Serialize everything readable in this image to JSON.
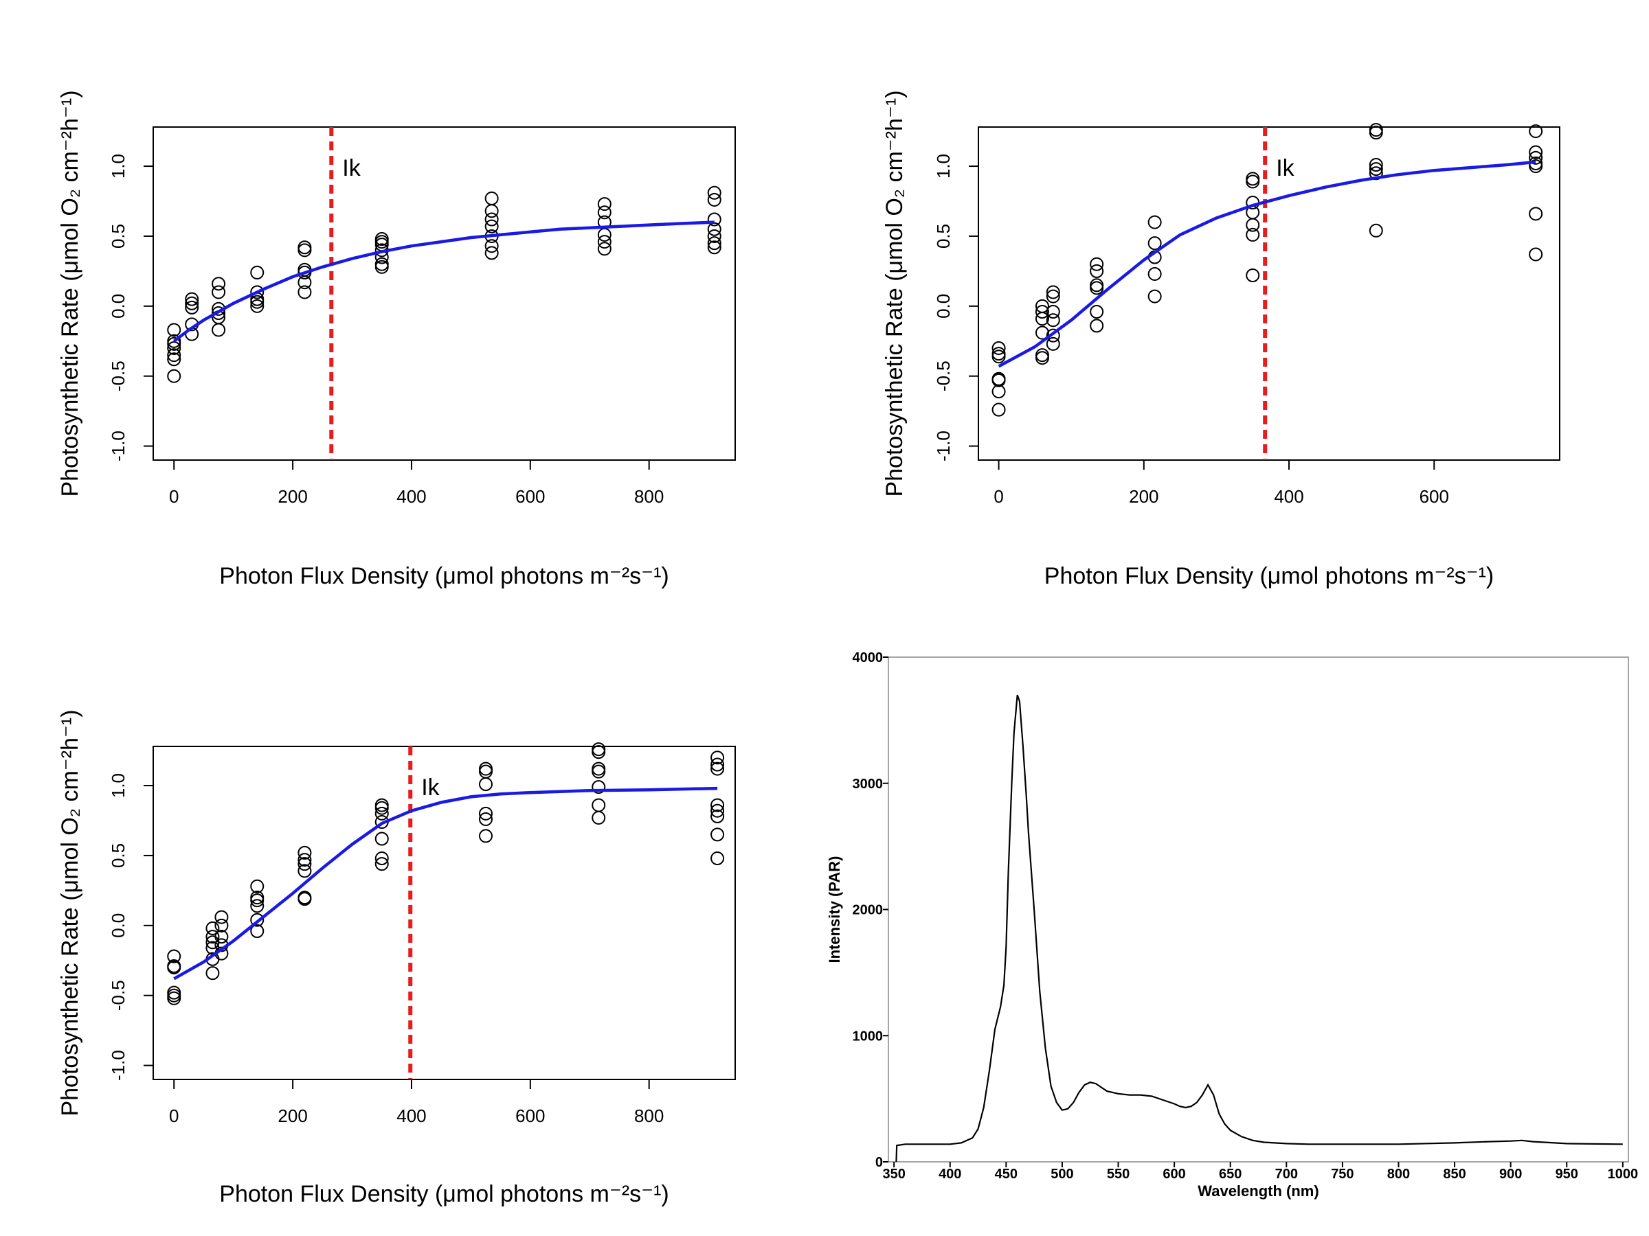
{
  "chart_data": [
    {
      "type": "scatter",
      "title": "",
      "xlabel": "Photon Flux Density (μmol photons m⁻²s⁻¹)",
      "ylabel": "Photosynthetic Rate (μmol O₂ cm⁻²h⁻¹)",
      "xlim": [
        -35,
        945
      ],
      "ylim": [
        -1.1,
        1.28
      ],
      "xticks": [
        "0",
        "200",
        "400",
        "600",
        "800"
      ],
      "xtick_values": [
        0,
        200,
        400,
        600,
        800
      ],
      "yticks": [
        "-1.0",
        "-0.5",
        "0.0",
        "0.5",
        "1.0"
      ],
      "ytick_values": [
        -1.0,
        -0.5,
        0.0,
        0.5,
        1.0
      ],
      "line_color": "#1a1ae6",
      "ik_color": "#e81c1c",
      "ik_label": "Ik",
      "ik_x": 265,
      "points": [
        [
          0,
          -0.5
        ],
        [
          0,
          -0.38
        ],
        [
          0,
          -0.35
        ],
        [
          0,
          -0.3
        ],
        [
          0,
          -0.27
        ],
        [
          0,
          -0.25
        ],
        [
          0,
          -0.17
        ],
        [
          30,
          -0.2
        ],
        [
          30,
          -0.13
        ],
        [
          30,
          -0.01
        ],
        [
          30,
          0.02
        ],
        [
          30,
          0.05
        ],
        [
          75,
          -0.17
        ],
        [
          75,
          -0.08
        ],
        [
          75,
          -0.05
        ],
        [
          75,
          -0.02
        ],
        [
          75,
          0.1
        ],
        [
          75,
          0.16
        ],
        [
          140,
          0.0
        ],
        [
          140,
          0.03
        ],
        [
          140,
          0.05
        ],
        [
          140,
          0.1
        ],
        [
          140,
          0.24
        ],
        [
          220,
          0.1
        ],
        [
          220,
          0.17
        ],
        [
          220,
          0.24
        ],
        [
          220,
          0.26
        ],
        [
          220,
          0.4
        ],
        [
          220,
          0.42
        ],
        [
          350,
          0.28
        ],
        [
          350,
          0.3
        ],
        [
          350,
          0.35
        ],
        [
          350,
          0.4
        ],
        [
          350,
          0.44
        ],
        [
          350,
          0.46
        ],
        [
          350,
          0.48
        ],
        [
          535,
          0.38
        ],
        [
          535,
          0.43
        ],
        [
          535,
          0.5
        ],
        [
          535,
          0.57
        ],
        [
          535,
          0.62
        ],
        [
          535,
          0.68
        ],
        [
          535,
          0.77
        ],
        [
          725,
          0.41
        ],
        [
          725,
          0.46
        ],
        [
          725,
          0.51
        ],
        [
          725,
          0.6
        ],
        [
          725,
          0.67
        ],
        [
          725,
          0.73
        ],
        [
          910,
          0.42
        ],
        [
          910,
          0.45
        ],
        [
          910,
          0.5
        ],
        [
          910,
          0.55
        ],
        [
          910,
          0.62
        ],
        [
          910,
          0.76
        ],
        [
          910,
          0.81
        ]
      ],
      "fit": [
        [
          0,
          -0.25
        ],
        [
          25,
          -0.17
        ],
        [
          50,
          -0.1
        ],
        [
          75,
          -0.04
        ],
        [
          100,
          0.02
        ],
        [
          150,
          0.12
        ],
        [
          200,
          0.21
        ],
        [
          250,
          0.28
        ],
        [
          300,
          0.34
        ],
        [
          350,
          0.39
        ],
        [
          400,
          0.43
        ],
        [
          450,
          0.46
        ],
        [
          500,
          0.49
        ],
        [
          550,
          0.51
        ],
        [
          600,
          0.53
        ],
        [
          650,
          0.55
        ],
        [
          700,
          0.56
        ],
        [
          750,
          0.57
        ],
        [
          800,
          0.58
        ],
        [
          850,
          0.59
        ],
        [
          910,
          0.6
        ]
      ]
    },
    {
      "type": "scatter",
      "title": "",
      "xlabel": "Photon Flux Density (μmol photons m⁻²s⁻¹)",
      "ylabel": "Photosynthetic Rate (μmol O₂ cm⁻²h⁻¹)",
      "xlim": [
        -28,
        773
      ],
      "ylim": [
        -1.1,
        1.28
      ],
      "xticks": [
        "0",
        "200",
        "400",
        "600"
      ],
      "xtick_values": [
        0,
        200,
        400,
        600
      ],
      "yticks": [
        "-1.0",
        "-0.5",
        "0.0",
        "0.5",
        "1.0"
      ],
      "ytick_values": [
        -1.0,
        -0.5,
        0.0,
        0.5,
        1.0
      ],
      "line_color": "#1a1ae6",
      "ik_color": "#e81c1c",
      "ik_label": "Ik",
      "ik_x": 367,
      "points": [
        [
          0,
          -0.74
        ],
        [
          0,
          -0.61
        ],
        [
          0,
          -0.53
        ],
        [
          0,
          -0.52
        ],
        [
          0,
          -0.36
        ],
        [
          0,
          -0.34
        ],
        [
          0,
          -0.3
        ],
        [
          60,
          -0.37
        ],
        [
          60,
          -0.35
        ],
        [
          60,
          -0.19
        ],
        [
          60,
          -0.09
        ],
        [
          60,
          -0.04
        ],
        [
          60,
          0.0
        ],
        [
          75,
          -0.27
        ],
        [
          75,
          -0.21
        ],
        [
          75,
          -0.1
        ],
        [
          75,
          -0.04
        ],
        [
          75,
          0.07
        ],
        [
          75,
          0.1
        ],
        [
          135,
          -0.14
        ],
        [
          135,
          -0.04
        ],
        [
          135,
          0.13
        ],
        [
          135,
          0.15
        ],
        [
          135,
          0.25
        ],
        [
          135,
          0.3
        ],
        [
          215,
          0.07
        ],
        [
          215,
          0.23
        ],
        [
          215,
          0.35
        ],
        [
          215,
          0.45
        ],
        [
          215,
          0.6
        ],
        [
          350,
          0.22
        ],
        [
          350,
          0.51
        ],
        [
          350,
          0.58
        ],
        [
          350,
          0.67
        ],
        [
          350,
          0.74
        ],
        [
          350,
          0.89
        ],
        [
          350,
          0.91
        ],
        [
          520,
          0.54
        ],
        [
          520,
          0.95
        ],
        [
          520,
          0.98
        ],
        [
          520,
          1.01
        ],
        [
          520,
          1.24
        ],
        [
          520,
          1.26
        ],
        [
          740,
          0.37
        ],
        [
          740,
          0.66
        ],
        [
          740,
          1.0
        ],
        [
          740,
          1.02
        ],
        [
          740,
          1.06
        ],
        [
          740,
          1.1
        ],
        [
          740,
          1.25
        ]
      ],
      "fit": [
        [
          0,
          -0.43
        ],
        [
          50,
          -0.29
        ],
        [
          100,
          -0.1
        ],
        [
          150,
          0.12
        ],
        [
          200,
          0.33
        ],
        [
          250,
          0.51
        ],
        [
          300,
          0.63
        ],
        [
          350,
          0.72
        ],
        [
          400,
          0.79
        ],
        [
          450,
          0.85
        ],
        [
          500,
          0.9
        ],
        [
          550,
          0.94
        ],
        [
          600,
          0.97
        ],
        [
          650,
          0.99
        ],
        [
          700,
          1.01
        ],
        [
          740,
          1.03
        ]
      ]
    },
    {
      "type": "scatter",
      "title": "",
      "xlabel": "Photon Flux Density (μmol photons m⁻²s⁻¹)",
      "ylabel": "Photosynthetic Rate (μmol O₂ cm⁻²h⁻¹)",
      "xlim": [
        -35,
        945
      ],
      "ylim": [
        -1.1,
        1.28
      ],
      "xticks": [
        "0",
        "200",
        "400",
        "600",
        "800"
      ],
      "xtick_values": [
        0,
        200,
        400,
        600,
        800
      ],
      "yticks": [
        "-1.0",
        "-0.5",
        "0.0",
        "0.5",
        "1.0"
      ],
      "ytick_values": [
        -1.0,
        -0.5,
        0.0,
        0.5,
        1.0
      ],
      "line_color": "#1a1ae6",
      "ik_color": "#e81c1c",
      "ik_label": "Ik",
      "ik_x": 398,
      "points": [
        [
          0,
          -0.52
        ],
        [
          0,
          -0.5
        ],
        [
          0,
          -0.48
        ],
        [
          0,
          -0.3
        ],
        [
          0,
          -0.29
        ],
        [
          0,
          -0.22
        ],
        [
          65,
          -0.34
        ],
        [
          65,
          -0.24
        ],
        [
          65,
          -0.16
        ],
        [
          65,
          -0.12
        ],
        [
          65,
          -0.08
        ],
        [
          65,
          -0.02
        ],
        [
          80,
          -0.2
        ],
        [
          80,
          -0.14
        ],
        [
          80,
          -0.08
        ],
        [
          80,
          0.0
        ],
        [
          80,
          0.06
        ],
        [
          140,
          -0.04
        ],
        [
          140,
          0.04
        ],
        [
          140,
          0.14
        ],
        [
          140,
          0.18
        ],
        [
          140,
          0.2
        ],
        [
          140,
          0.28
        ],
        [
          220,
          0.19
        ],
        [
          220,
          0.2
        ],
        [
          220,
          0.39
        ],
        [
          220,
          0.44
        ],
        [
          220,
          0.47
        ],
        [
          220,
          0.52
        ],
        [
          350,
          0.44
        ],
        [
          350,
          0.48
        ],
        [
          350,
          0.62
        ],
        [
          350,
          0.74
        ],
        [
          350,
          0.8
        ],
        [
          350,
          0.84
        ],
        [
          350,
          0.86
        ],
        [
          525,
          0.64
        ],
        [
          525,
          0.76
        ],
        [
          525,
          0.8
        ],
        [
          525,
          1.01
        ],
        [
          525,
          1.1
        ],
        [
          525,
          1.12
        ],
        [
          715,
          0.77
        ],
        [
          715,
          0.86
        ],
        [
          715,
          0.99
        ],
        [
          715,
          1.1
        ],
        [
          715,
          1.12
        ],
        [
          715,
          1.24
        ],
        [
          715,
          1.26
        ],
        [
          915,
          0.48
        ],
        [
          915,
          0.65
        ],
        [
          915,
          0.78
        ],
        [
          915,
          0.82
        ],
        [
          915,
          0.86
        ],
        [
          915,
          1.12
        ],
        [
          915,
          1.15
        ],
        [
          915,
          1.2
        ]
      ],
      "fit": [
        [
          0,
          -0.38
        ],
        [
          50,
          -0.26
        ],
        [
          100,
          -0.11
        ],
        [
          150,
          0.06
        ],
        [
          200,
          0.23
        ],
        [
          250,
          0.41
        ],
        [
          300,
          0.58
        ],
        [
          350,
          0.73
        ],
        [
          400,
          0.82
        ],
        [
          450,
          0.88
        ],
        [
          500,
          0.92
        ],
        [
          550,
          0.94
        ],
        [
          600,
          0.95
        ],
        [
          700,
          0.965
        ],
        [
          800,
          0.97
        ],
        [
          915,
          0.98
        ]
      ]
    },
    {
      "type": "line",
      "title": "",
      "xlabel": "Wavelength (nm)",
      "ylabel": "Intensity (PAR)",
      "xlim": [
        345,
        1005
      ],
      "ylim": [
        0,
        4000
      ],
      "xticks": [
        "350",
        "400",
        "450",
        "500",
        "550",
        "600",
        "650",
        "700",
        "750",
        "800",
        "850",
        "900",
        "950",
        "1000"
      ],
      "xtick_values": [
        350,
        400,
        450,
        500,
        550,
        600,
        650,
        700,
        750,
        800,
        850,
        900,
        950,
        1000
      ],
      "yticks": [
        "0",
        "1000",
        "2000",
        "3000",
        "4000"
      ],
      "ytick_values": [
        0,
        1000,
        2000,
        3000,
        4000
      ],
      "line_color": "#000000",
      "x": [
        352,
        352.5,
        360,
        380,
        400,
        410,
        420,
        425,
        430,
        435,
        440,
        445,
        448,
        450,
        452,
        455,
        457,
        460,
        462,
        465,
        468,
        470,
        475,
        480,
        485,
        490,
        495,
        500,
        505,
        510,
        515,
        520,
        525,
        530,
        535,
        540,
        550,
        560,
        570,
        580,
        590,
        600,
        605,
        610,
        615,
        620,
        625,
        630,
        635,
        640,
        645,
        650,
        660,
        670,
        680,
        700,
        720,
        750,
        800,
        850,
        880,
        900,
        910,
        920,
        950,
        1000
      ],
      "y": [
        0,
        130,
        140,
        140,
        140,
        150,
        190,
        260,
        430,
        720,
        1050,
        1230,
        1400,
        1700,
        2300,
        3000,
        3400,
        3700,
        3650,
        3300,
        2900,
        2600,
        2000,
        1350,
        900,
        600,
        470,
        410,
        420,
        470,
        550,
        610,
        630,
        620,
        590,
        560,
        540,
        530,
        530,
        520,
        490,
        460,
        440,
        430,
        440,
        470,
        530,
        610,
        530,
        380,
        300,
        250,
        200,
        170,
        155,
        145,
        140,
        140,
        140,
        150,
        160,
        165,
        170,
        160,
        145,
        140
      ]
    }
  ]
}
